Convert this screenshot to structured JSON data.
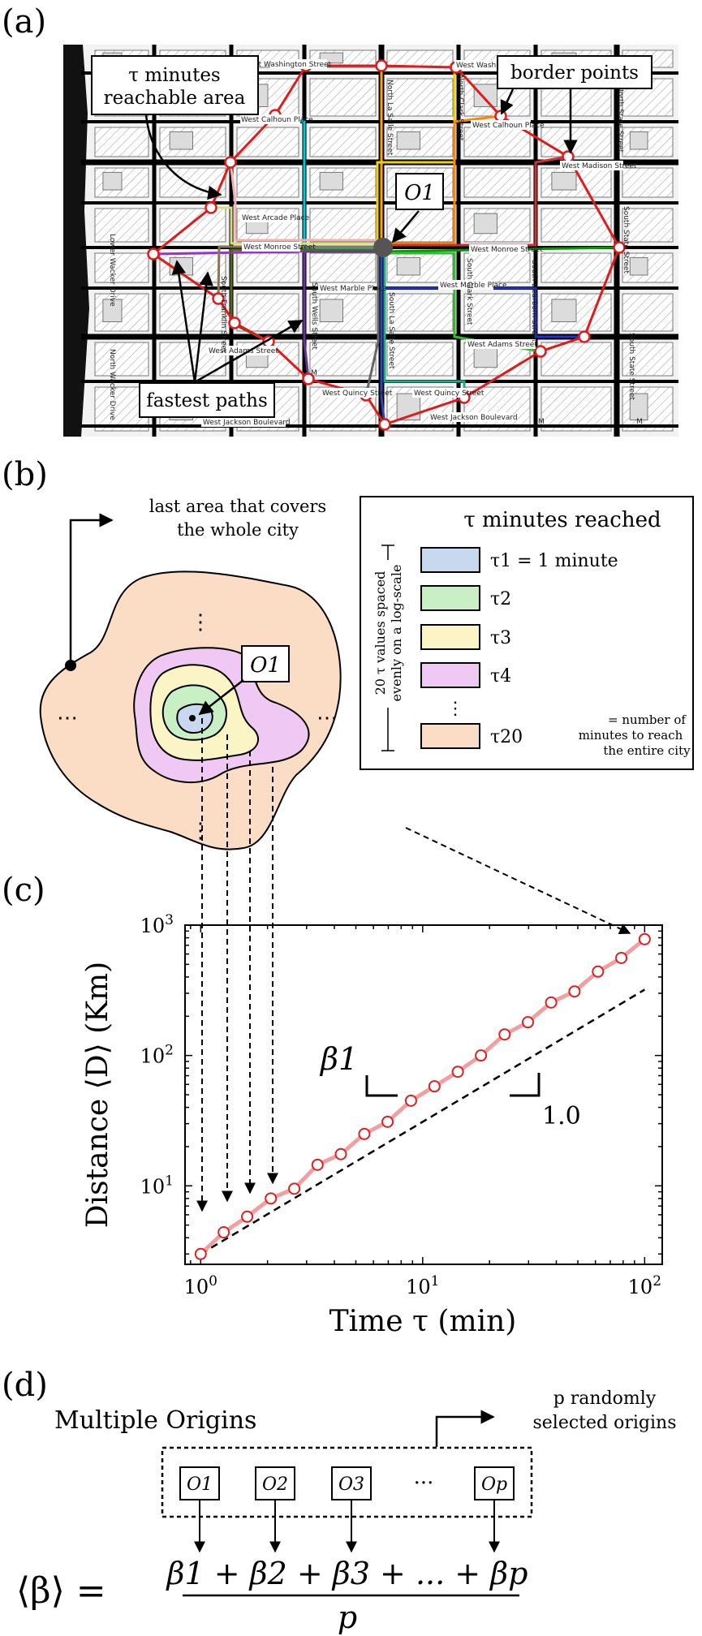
{
  "panel_a": {
    "label": "(a)",
    "callout_reachable": [
      "τ minutes",
      "reachable area"
    ],
    "callout_border": "border points",
    "callout_origin": "O1",
    "callout_paths": "fastest paths",
    "streets": {
      "washington_l": "West Washington Street",
      "washington_r": "West Washi...",
      "calhoun_l": "West Calhoun Place",
      "calhoun_r": "West Calhoun Place",
      "arcade": "West Arcade Place",
      "monroe_l": "West Monroe Street",
      "monroe_r": "West Monroe Street",
      "madison": "West Madison Street",
      "marble_l": "West Marble Place",
      "marble_r": "West Marble Place",
      "adams_l": "West Adams Street",
      "adams_r": "West Adams Street",
      "quincy_l": "West Quincy Street",
      "quincy_r": "West Quincy Street",
      "jackson_l": "West Jackson Boulevard",
      "jackson_r": "West Jackson Boulevard",
      "lasalle": "North La Salle Street",
      "clark": "North Clark Street",
      "state_n": "North State Street",
      "state_s": "South State Street",
      "franklin": "South Franklin Street",
      "wells": "South Wells Street",
      "lasalle_s": "South La Salle Street",
      "clark_s": "South Clark Street",
      "dearborn": "South Dearborn Street",
      "wacker": "Lower Wacker Drive",
      "wacker2": "North Wacker Drive",
      "state_right": "South State Street",
      "metro": "M"
    }
  },
  "panel_b": {
    "label": "(b)",
    "callout_last": [
      "last area that covers",
      "the whole city"
    ],
    "origin": "O1",
    "legend_title": "τ minutes reached",
    "legend_side": [
      "20 τ values spaced",
      "evenly on a log-scale"
    ],
    "legend_items": [
      {
        "label": "τ1 = 1 minute",
        "color": "#c8d8ee"
      },
      {
        "label": "τ2",
        "color": "#c9f0c4"
      },
      {
        "label": "τ3",
        "color": "#fbf4c4"
      },
      {
        "label": "τ4",
        "color": "#f0c8f4"
      },
      {
        "label": "τ20",
        "color": "#fbdcc4",
        "note": [
          "= number of",
          "minutes to reach",
          "the entire city"
        ]
      }
    ],
    "ellipsis": "⋯",
    "vdots": "⋮"
  },
  "panel_c": {
    "label": "(c)",
    "slope_label": "β1",
    "ref_slope_label": "1.0"
  },
  "panel_d": {
    "label": "(d)",
    "title": "Multiple Origins",
    "callout": [
      "p randomly",
      "selected origins"
    ],
    "origins": [
      "O1",
      "O2",
      "O3",
      "Op"
    ],
    "ellipsis": "···",
    "formula_lhs": "⟨β⟩ =",
    "formula_num": "β1 + β2 + β3 + ... + βp",
    "formula_den": "p"
  },
  "chart_data": {
    "type": "scatter",
    "xscale": "log",
    "yscale": "log",
    "xlim": [
      0.85,
      120
    ],
    "ylim": [
      2.5,
      1000
    ],
    "xlabel": "Time τ (min)",
    "ylabel": "Distance ⟨D⟩ (Km)",
    "xticks": [
      {
        "value": 1,
        "label": "10^0"
      },
      {
        "value": 10,
        "label": "10^1"
      },
      {
        "value": 100,
        "label": "10^2"
      }
    ],
    "yticks": [
      {
        "value": 10,
        "label": "10^1"
      },
      {
        "value": 100,
        "label": "10^2"
      },
      {
        "value": 1000,
        "label": "10^3"
      }
    ],
    "x": [
      1.0,
      1.27,
      1.62,
      2.07,
      2.64,
      3.36,
      4.28,
      5.46,
      6.95,
      8.86,
      11.3,
      14.4,
      18.3,
      23.4,
      29.8,
      37.9,
      48.3,
      61.6,
      78.5,
      100
    ],
    "y": [
      3.0,
      4.4,
      5.8,
      8.0,
      9.5,
      14.5,
      17.5,
      25.0,
      31.0,
      45.0,
      58.0,
      75.0,
      100.0,
      145.0,
      180.0,
      255.0,
      310.0,
      440.0,
      560.0,
      780.0
    ],
    "fit_color": "#f0a0a0",
    "marker_color": "#e02020",
    "reference_line": {
      "x": [
        1,
        100
      ],
      "y": [
        3.0,
        320.0
      ],
      "style": "dashed"
    },
    "grid": false
  }
}
